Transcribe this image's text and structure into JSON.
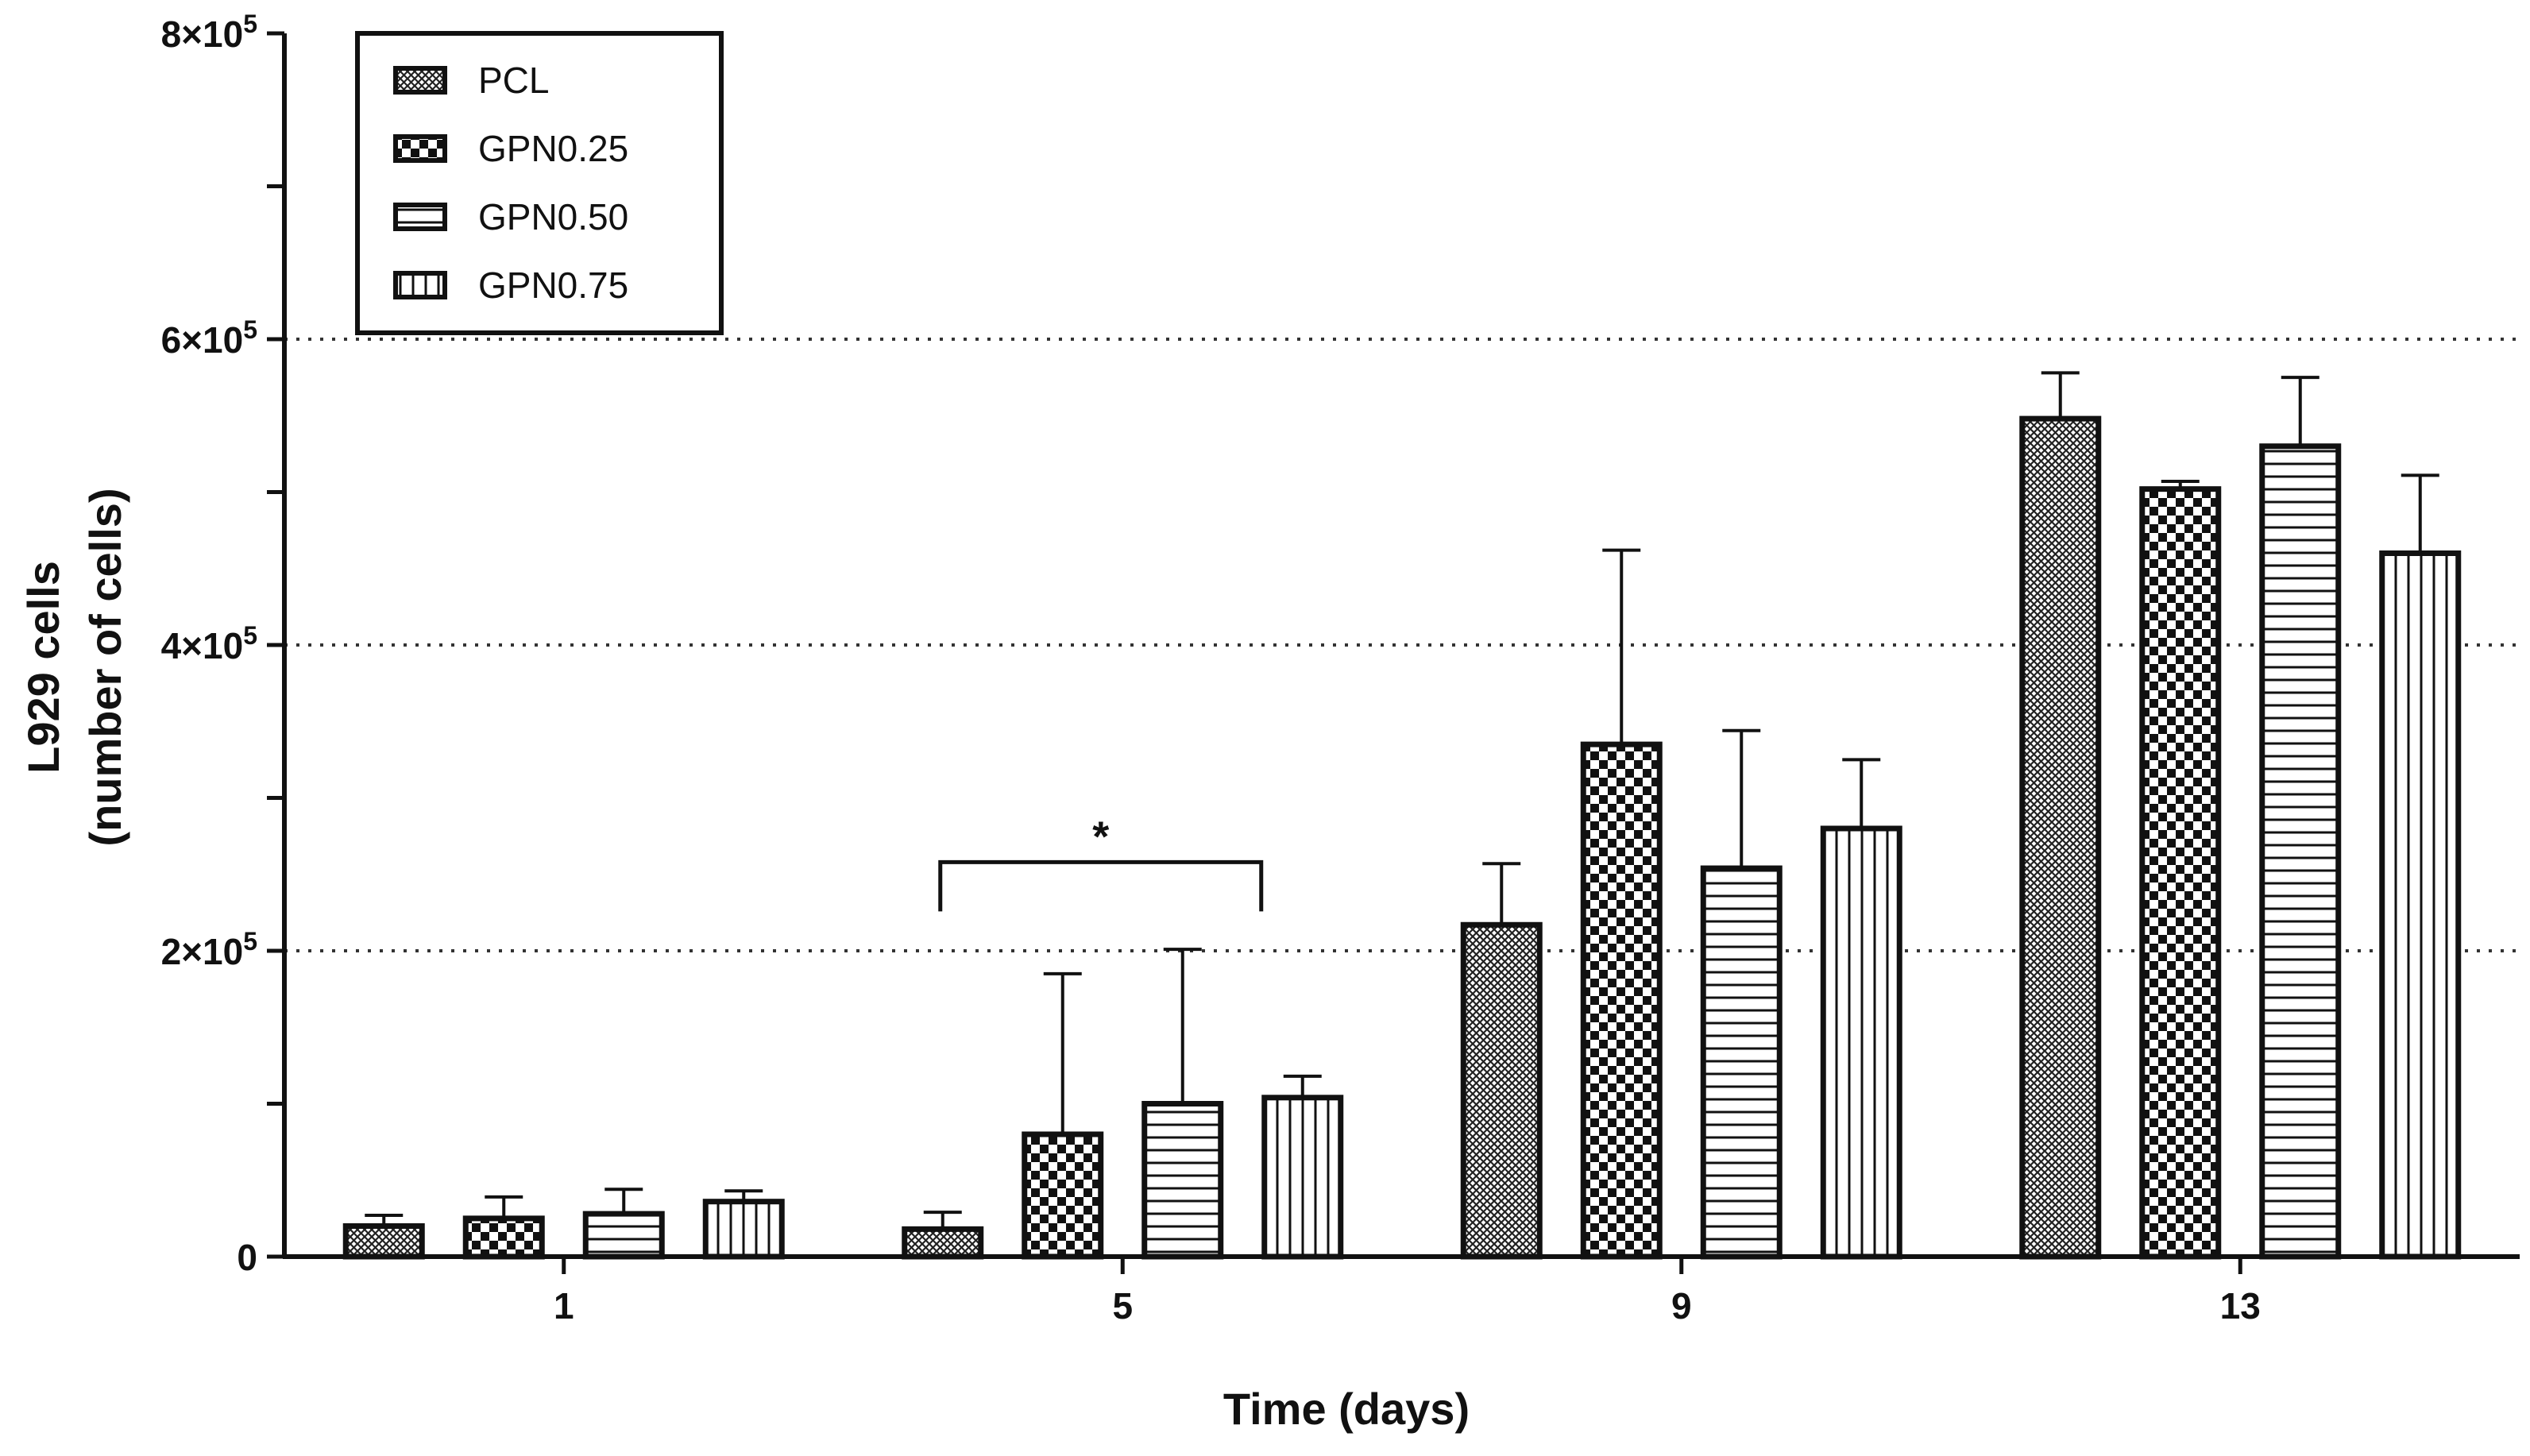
{
  "chart_data": {
    "type": "bar",
    "title": "",
    "xlabel": "Time (days)",
    "ylabel": "L929 cells",
    "ylabel_sub": "(number of cells)",
    "ylim": [
      0,
      800000
    ],
    "grid": "dotted horizontal at 200000, 400000, 600000",
    "categories": [
      "1",
      "5",
      "9",
      "13"
    ],
    "y_ticks": [
      {
        "value": 0,
        "label": "0",
        "exp": ""
      },
      {
        "value": 100000,
        "label": "",
        "exp": ""
      },
      {
        "value": 200000,
        "label": "2×10",
        "exp": "5"
      },
      {
        "value": 300000,
        "label": "",
        "exp": ""
      },
      {
        "value": 400000,
        "label": "4×10",
        "exp": "5"
      },
      {
        "value": 500000,
        "label": "",
        "exp": ""
      },
      {
        "value": 600000,
        "label": "6×10",
        "exp": "5"
      },
      {
        "value": 700000,
        "label": "",
        "exp": ""
      },
      {
        "value": 800000,
        "label": "8×10",
        "exp": "5"
      }
    ],
    "series": [
      {
        "name": "PCL",
        "pattern": "fine-crosshatch",
        "values": [
          20000,
          18000,
          217000,
          548000
        ],
        "errors": [
          7000,
          11000,
          40000,
          30000
        ]
      },
      {
        "name": "GPN0.25",
        "pattern": "checker",
        "values": [
          25000,
          80000,
          335000,
          502000
        ],
        "errors": [
          14000,
          105000,
          127000,
          5000
        ]
      },
      {
        "name": "GPN0.50",
        "pattern": "horizontal-lines",
        "values": [
          28000,
          100000,
          254000,
          530000
        ],
        "errors": [
          16000,
          101000,
          90000,
          45000
        ]
      },
      {
        "name": "GPN0.75",
        "pattern": "vertical-lines",
        "values": [
          36000,
          104000,
          280000,
          460000
        ],
        "errors": [
          7000,
          14000,
          45000,
          51000
        ]
      }
    ],
    "legend_position": "top-left",
    "annotations": [
      {
        "text": "*",
        "category": "5",
        "from_series": "PCL",
        "to_series": "GPN0.75",
        "value": 258000
      }
    ]
  }
}
